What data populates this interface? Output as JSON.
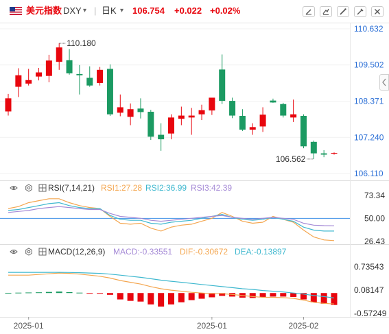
{
  "header": {
    "name": "美元指数",
    "symbol": "DXY",
    "symbol_arrow": "▾",
    "period": "日K",
    "period_arrow": "▾",
    "last": "106.754",
    "change": "+0.022",
    "change_pct": "+0.02%"
  },
  "colors": {
    "up": "#e8060e",
    "down": "#1b9a62",
    "rsi1": "#f4a64f",
    "rsi2": "#3fb8cf",
    "rsi3": "#a58ad6",
    "macd_line": "#a58ad6",
    "dif": "#f4a64f",
    "dea": "#3fb8cf",
    "axis_text": "#333333",
    "blue_text": "#2b6fd6",
    "ref_line": "#3b8fe6"
  },
  "icons": [
    "flag-us-icon",
    "draw-icon",
    "compare-icon",
    "line-icon",
    "settings-icon",
    "close-icon",
    "eye-icon",
    "gear-icon",
    "chevron-left-icon"
  ],
  "chart_data": [
    {
      "type": "candlestick",
      "y_axis": {
        "ticks": [
          "110.632",
          "109.502",
          "108.371",
          "107.240",
          "106.110"
        ],
        "range": [
          106.11,
          110.632
        ]
      },
      "annotations": {
        "high_label": "110.180",
        "low_label": "106.562"
      },
      "x_tick_labels": [
        "2025-01",
        "2025-01",
        "2025-02"
      ],
      "candles": [
        {
          "o": 108.05,
          "h": 108.6,
          "l": 107.92,
          "c": 108.46
        },
        {
          "o": 108.82,
          "h": 109.4,
          "l": 108.5,
          "c": 109.18
        },
        {
          "o": 108.92,
          "h": 109.38,
          "l": 108.86,
          "c": 109.03
        },
        {
          "o": 109.14,
          "h": 109.41,
          "l": 109.02,
          "c": 109.27
        },
        {
          "o": 109.16,
          "h": 109.82,
          "l": 108.96,
          "c": 109.64
        },
        {
          "o": 109.6,
          "h": 110.18,
          "l": 109.35,
          "c": 110.05
        },
        {
          "o": 109.65,
          "h": 110.0,
          "l": 109.2,
          "c": 109.24
        },
        {
          "o": 109.22,
          "h": 109.5,
          "l": 108.58,
          "c": 109.18
        },
        {
          "o": 109.1,
          "h": 109.46,
          "l": 108.82,
          "c": 108.86
        },
        {
          "o": 108.94,
          "h": 109.44,
          "l": 108.86,
          "c": 109.35
        },
        {
          "o": 109.38,
          "h": 109.52,
          "l": 107.91,
          "c": 107.96
        },
        {
          "o": 108.01,
          "h": 108.58,
          "l": 107.9,
          "c": 108.18
        },
        {
          "o": 107.88,
          "h": 108.3,
          "l": 107.62,
          "c": 108.12
        },
        {
          "o": 108.14,
          "h": 108.46,
          "l": 107.83,
          "c": 108.03
        },
        {
          "o": 108.04,
          "h": 108.1,
          "l": 107.16,
          "c": 107.26
        },
        {
          "o": 107.32,
          "h": 107.68,
          "l": 106.82,
          "c": 107.18
        },
        {
          "o": 107.36,
          "h": 107.96,
          "l": 107.18,
          "c": 107.86
        },
        {
          "o": 107.82,
          "h": 108.2,
          "l": 107.62,
          "c": 107.92
        },
        {
          "o": 107.86,
          "h": 108.16,
          "l": 107.32,
          "c": 107.92
        },
        {
          "o": 107.96,
          "h": 108.26,
          "l": 107.78,
          "c": 108.09
        },
        {
          "o": 108.08,
          "h": 108.44,
          "l": 107.94,
          "c": 108.48
        },
        {
          "o": 109.36,
          "h": 109.83,
          "l": 108.28,
          "c": 108.38
        },
        {
          "o": 108.38,
          "h": 108.48,
          "l": 107.84,
          "c": 107.92
        },
        {
          "o": 107.91,
          "h": 108.12,
          "l": 107.44,
          "c": 107.48
        },
        {
          "o": 107.48,
          "h": 107.68,
          "l": 107.32,
          "c": 107.56
        },
        {
          "o": 107.58,
          "h": 108.18,
          "l": 107.41,
          "c": 107.95
        },
        {
          "o": 108.39,
          "h": 108.45,
          "l": 108.32,
          "c": 108.33
        },
        {
          "o": 108.28,
          "h": 108.32,
          "l": 107.86,
          "c": 107.92
        },
        {
          "o": 107.86,
          "h": 108.42,
          "l": 107.72,
          "c": 107.96
        },
        {
          "o": 107.91,
          "h": 107.96,
          "l": 106.9,
          "c": 106.96
        },
        {
          "o": 107.1,
          "h": 107.14,
          "l": 106.562,
          "c": 106.74
        },
        {
          "o": 106.74,
          "h": 106.84,
          "l": 106.62,
          "c": 106.7
        },
        {
          "o": 106.732,
          "h": 106.77,
          "l": 106.7,
          "c": 106.754
        }
      ]
    },
    {
      "type": "line",
      "legend": {
        "title": "RSI(7,14,21)",
        "rsi1": "RSI1:27.28",
        "rsi2": "RSI2:36.99",
        "rsi3": "RSI3:42.39"
      },
      "y_axis": {
        "ticks": [
          "73.34",
          "50.00",
          "26.43"
        ],
        "range": [
          26.43,
          73.34
        ]
      },
      "reference_line": 50,
      "series": [
        {
          "name": "RSI1",
          "values": [
            60,
            62,
            66,
            68,
            70,
            70,
            66,
            63,
            61,
            60,
            52,
            45,
            44,
            45,
            40,
            37,
            41,
            43,
            44,
            47,
            50,
            56,
            52,
            47,
            45,
            46,
            52,
            49,
            46,
            38,
            31,
            28,
            27.28
          ]
        },
        {
          "name": "RSI2",
          "values": [
            58,
            59,
            61,
            63,
            65,
            66,
            63,
            61,
            60,
            60,
            53,
            49,
            48,
            48,
            45,
            44,
            46,
            47,
            48,
            50,
            52,
            54,
            51,
            49,
            48,
            49,
            51,
            49,
            47,
            41,
            38,
            37,
            36.99
          ]
        },
        {
          "name": "RSI3",
          "values": [
            56,
            57,
            58,
            60,
            61,
            62,
            61,
            60,
            59,
            59,
            55,
            52,
            51,
            50,
            48,
            47,
            48,
            49,
            50,
            51,
            52,
            53,
            51,
            50,
            49,
            50,
            51,
            50,
            49,
            45,
            43,
            42.5,
            42.39
          ]
        }
      ]
    },
    {
      "type": "bar",
      "legend": {
        "title": "MACD(12,26,9)",
        "macd": "MACD:-0.33551",
        "dif": "DIF:-0.30672",
        "dea": "DEA:-0.13897"
      },
      "y_axis": {
        "ticks": [
          "0.73543",
          "0.08147",
          "-0.57249"
        ],
        "range": [
          -0.57249,
          0.73543
        ]
      },
      "series": [
        {
          "name": "MACD",
          "values": [
            0.005,
            0.01,
            0.015,
            0.02,
            0.03,
            0.04,
            0.025,
            0.01,
            -0.01,
            -0.02,
            -0.05,
            -0.18,
            -0.22,
            -0.24,
            -0.32,
            -0.38,
            -0.32,
            -0.26,
            -0.2,
            -0.16,
            -0.12,
            -0.08,
            -0.1,
            -0.13,
            -0.14,
            -0.12,
            -0.1,
            -0.1,
            -0.11,
            -0.18,
            -0.26,
            -0.3,
            -0.33551
          ]
        },
        {
          "name": "DIF",
          "values": [
            0.5,
            0.5,
            0.5,
            0.52,
            0.54,
            0.56,
            0.55,
            0.53,
            0.5,
            0.47,
            0.42,
            0.35,
            0.3,
            0.25,
            0.18,
            0.12,
            0.08,
            0.05,
            0.02,
            0.0,
            -0.02,
            -0.02,
            -0.04,
            -0.07,
            -0.1,
            -0.12,
            -0.12,
            -0.13,
            -0.15,
            -0.2,
            -0.26,
            -0.29,
            -0.30672
          ]
        },
        {
          "name": "DEA",
          "values": [
            0.58,
            0.58,
            0.58,
            0.58,
            0.58,
            0.58,
            0.575,
            0.57,
            0.56,
            0.55,
            0.53,
            0.5,
            0.47,
            0.44,
            0.4,
            0.36,
            0.33,
            0.3,
            0.27,
            0.24,
            0.21,
            0.18,
            0.15,
            0.12,
            0.1,
            0.07,
            0.05,
            0.03,
            0.0,
            -0.03,
            -0.07,
            -0.1,
            -0.13897
          ]
        }
      ]
    }
  ]
}
